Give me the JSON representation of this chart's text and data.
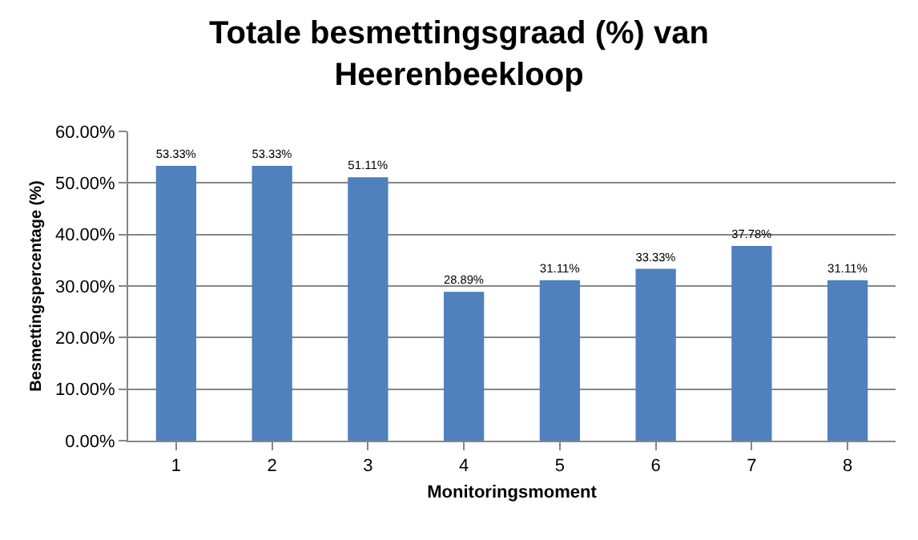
{
  "chart_data": {
    "type": "bar",
    "title": "Totale besmettingsgraad (%) van Heerenbeekloop",
    "xlabel": "Monitoringsmoment",
    "ylabel": "Besmettingspercentage (%)",
    "categories": [
      "1",
      "2",
      "3",
      "4",
      "5",
      "6",
      "7",
      "8"
    ],
    "values": [
      53.33,
      53.33,
      51.11,
      28.89,
      31.11,
      33.33,
      37.78,
      31.11
    ],
    "value_labels": [
      "53.33%",
      "53.33%",
      "51.11%",
      "28.89%",
      "31.11%",
      "33.33%",
      "37.78%",
      "31.11%"
    ],
    "color": "#4f81bd",
    "ylim": [
      0,
      60
    ],
    "yticks": [
      {
        "value": 0,
        "label": "0.00%"
      },
      {
        "value": 10,
        "label": "10.00%"
      },
      {
        "value": 20,
        "label": "20.00%"
      },
      {
        "value": 30,
        "label": "30.00%"
      },
      {
        "value": 40,
        "label": "40.00%"
      },
      {
        "value": 50,
        "label": "50.00%"
      },
      {
        "value": 60,
        "label": "60.00%"
      }
    ],
    "grid": "y",
    "legend": false
  }
}
